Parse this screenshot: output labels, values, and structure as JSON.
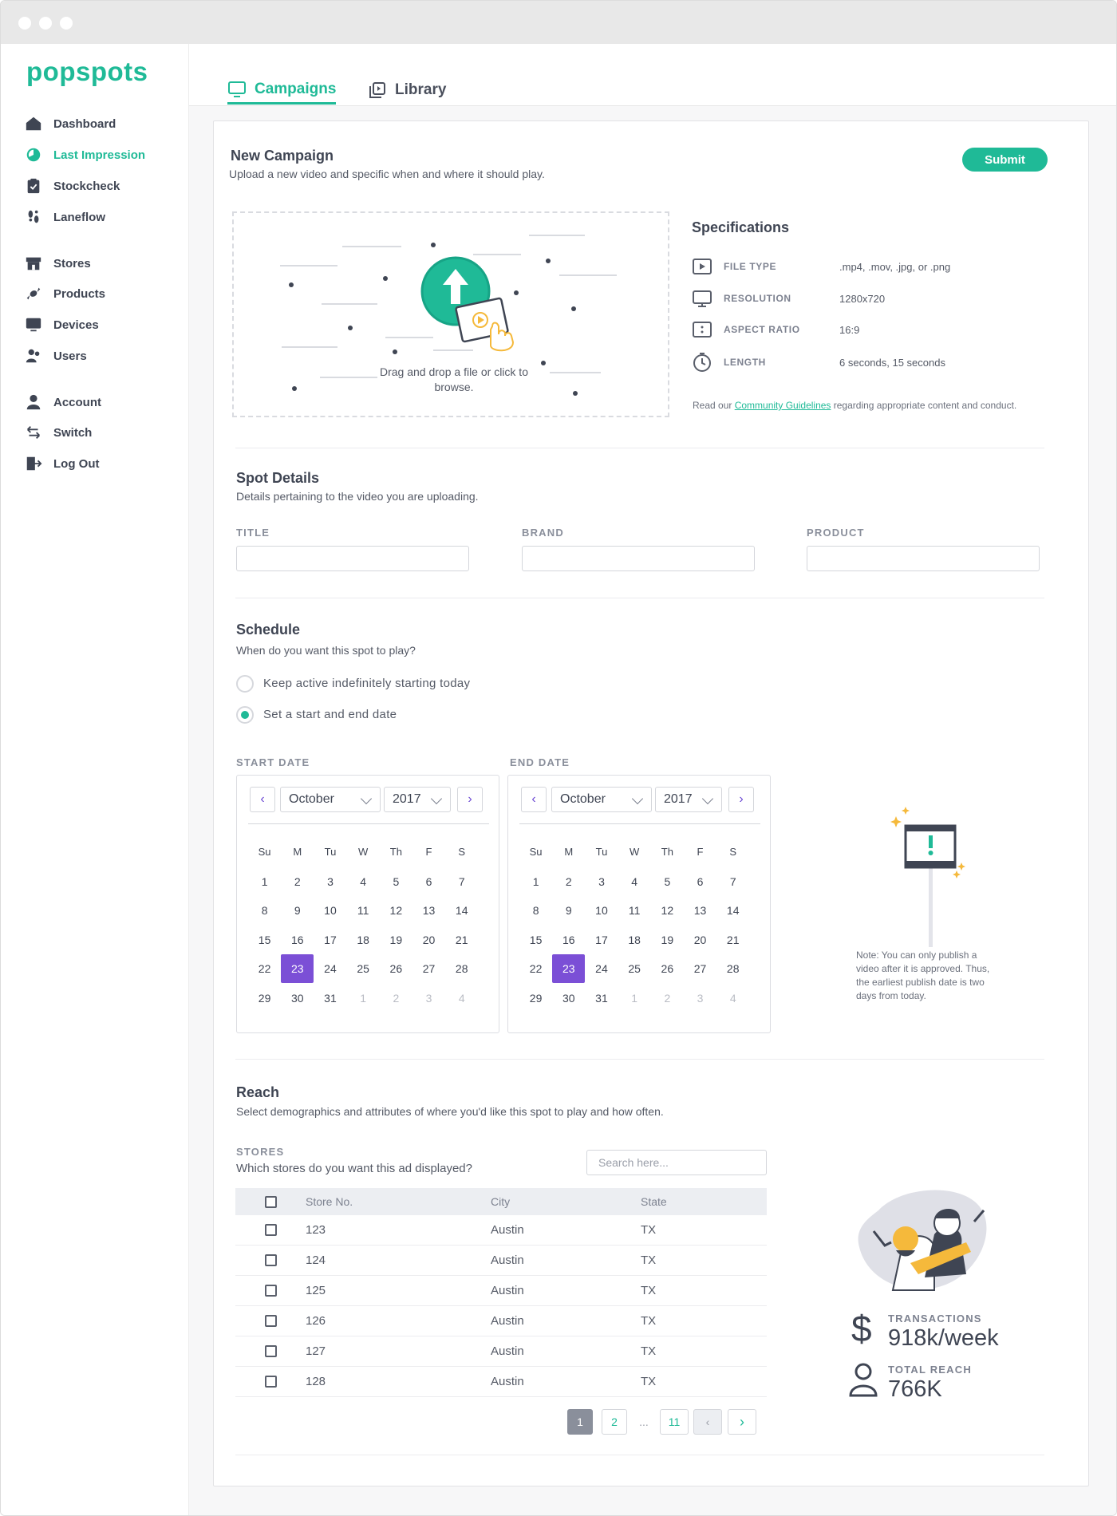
{
  "app": {
    "logo": "popspots"
  },
  "sidebar": {
    "groups": [
      [
        {
          "label": "Dashboard",
          "icon": "home-icon",
          "active": false
        },
        {
          "label": "Last Impression",
          "icon": "pie-chart-icon",
          "active": true
        },
        {
          "label": "Stockcheck",
          "icon": "clipboard-icon",
          "active": false
        },
        {
          "label": "Laneflow",
          "icon": "footsteps-icon",
          "active": false
        }
      ],
      [
        {
          "label": "Stores",
          "icon": "storefront-icon",
          "active": false
        },
        {
          "label": "Products",
          "icon": "candy-icon",
          "active": false
        },
        {
          "label": "Devices",
          "icon": "monitor-icon",
          "active": false
        },
        {
          "label": "Users",
          "icon": "users-icon",
          "active": false
        }
      ],
      [
        {
          "label": "Account",
          "icon": "person-icon",
          "active": false
        },
        {
          "label": "Switch",
          "icon": "switch-arrows-icon",
          "active": false
        },
        {
          "label": "Log Out",
          "icon": "logout-icon",
          "active": false
        }
      ]
    ]
  },
  "tabs": [
    {
      "label": "Campaigns",
      "icon": "monitor-icon",
      "active": true
    },
    {
      "label": "Library",
      "icon": "library-icon",
      "active": false
    }
  ],
  "campaign": {
    "title": "New Campaign",
    "subtitle": "Upload a new video and specific when and where it should play.",
    "submit_label": "Submit",
    "dropzone_text": "Drag and drop a file or click to browse."
  },
  "specs": {
    "title": "Specifications",
    "rows": [
      {
        "name": "FILE TYPE",
        "value": ".mp4, .mov, .jpg, or .png",
        "icon": "video-file-icon"
      },
      {
        "name": "RESOLUTION",
        "value": "1280x720",
        "icon": "monitor-icon"
      },
      {
        "name": "ASPECT RATIO",
        "value": "16:9",
        "icon": "aspect-ratio-icon"
      },
      {
        "name": "LENGTH",
        "value": "6 seconds, 15 seconds",
        "icon": "stopwatch-icon"
      }
    ],
    "guidelines_prefix": "Read our ",
    "guidelines_link": "Community Guidelines",
    "guidelines_suffix": " regarding appropriate content and conduct."
  },
  "spot": {
    "title": "Spot Details",
    "subtitle": "Details pertaining to the video you are uploading.",
    "fields": [
      {
        "label": "TITLE",
        "value": ""
      },
      {
        "label": "BRAND",
        "value": ""
      },
      {
        "label": "PRODUCT",
        "value": ""
      }
    ]
  },
  "schedule": {
    "title": "Schedule",
    "subtitle": "When do you want this spot to play?",
    "options": [
      {
        "label": "Keep active indefinitely starting today",
        "selected": false
      },
      {
        "label": "Set a start and end date",
        "selected": true
      }
    ],
    "start_label": "START DATE",
    "end_label": "END DATE",
    "start": {
      "month": "October",
      "year": "2017",
      "selected_day": "23"
    },
    "end": {
      "month": "October",
      "year": "2017",
      "selected_day": "23"
    },
    "weekdays": [
      "Su",
      "M",
      "Tu",
      "W",
      "Th",
      "F",
      "S"
    ],
    "weeks": [
      [
        "1",
        "2",
        "3",
        "4",
        "5",
        "6",
        "7"
      ],
      [
        "8",
        "9",
        "10",
        "11",
        "12",
        "13",
        "14"
      ],
      [
        "15",
        "16",
        "17",
        "18",
        "19",
        "20",
        "21"
      ],
      [
        "22",
        "23",
        "24",
        "25",
        "26",
        "27",
        "28"
      ],
      [
        "29",
        "30",
        "31",
        "1",
        "2",
        "3",
        "4"
      ]
    ],
    "note": "Note: You can only publish a video after it is approved. Thus, the earliest publish date is two days from today.",
    "accent_color": "#7b4fd6"
  },
  "reach": {
    "title": "Reach",
    "subtitle": "Select demographics and attributes of where you'd like this spot to play and how often.",
    "stores_label": "STORES",
    "stores_question": "Which stores do you want this ad displayed?",
    "search_placeholder": "Search here...",
    "columns": [
      "Store No.",
      "City",
      "State"
    ],
    "rows": [
      {
        "store": "123",
        "city": "Austin",
        "state": "TX"
      },
      {
        "store": "124",
        "city": "Austin",
        "state": "TX"
      },
      {
        "store": "125",
        "city": "Austin",
        "state": "TX"
      },
      {
        "store": "126",
        "city": "Austin",
        "state": "TX"
      },
      {
        "store": "127",
        "city": "Austin",
        "state": "TX"
      },
      {
        "store": "128",
        "city": "Austin",
        "state": "TX"
      }
    ],
    "pagination": {
      "pages": [
        "1",
        "2",
        "...",
        "11"
      ],
      "current": "1",
      "prev": "‹",
      "next": "›"
    },
    "stats": [
      {
        "label": "TRANSACTIONS",
        "value": "918k/week",
        "icon": "dollar-icon"
      },
      {
        "label": "TOTAL REACH",
        "value": "766K",
        "icon": "person-icon"
      }
    ]
  },
  "colors": {
    "brand": "#1fba97",
    "accent": "#7b4fd6",
    "text": "#3f4553"
  }
}
